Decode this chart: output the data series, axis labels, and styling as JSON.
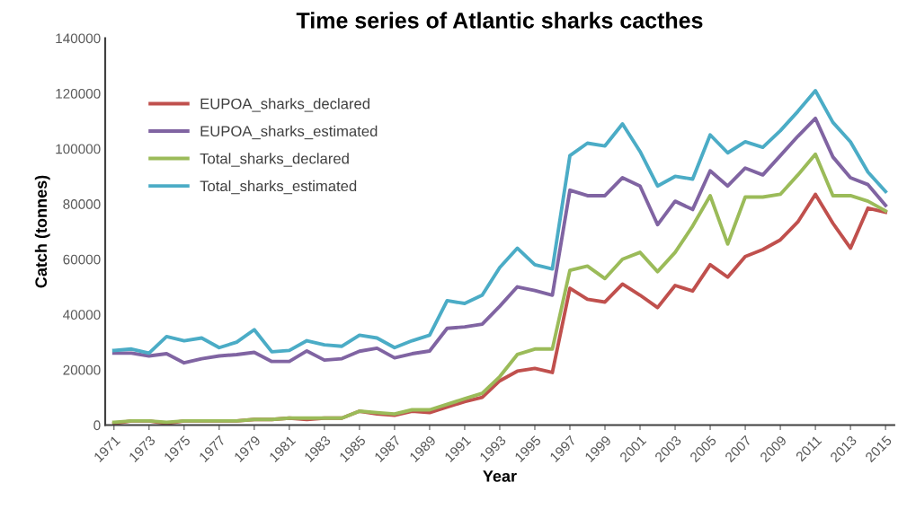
{
  "chart_data": {
    "type": "line",
    "title": "Time series of Atlantic sharks cacthes",
    "xlabel": "Year",
    "ylabel": "Catch (tonnes)",
    "x": [
      1971,
      1972,
      1973,
      1974,
      1975,
      1976,
      1977,
      1978,
      1979,
      1980,
      1981,
      1982,
      1983,
      1984,
      1985,
      1986,
      1987,
      1988,
      1989,
      1990,
      1991,
      1992,
      1993,
      1994,
      1995,
      1996,
      1997,
      1998,
      1999,
      2000,
      2001,
      2002,
      2003,
      2004,
      2005,
      2006,
      2007,
      2008,
      2009,
      2010,
      2011,
      2012,
      2013,
      2014,
      2015
    ],
    "series": [
      {
        "name": "EUPOA_sharks_declared",
        "color": "#c0504d",
        "values": [
          500,
          1500,
          1500,
          500,
          1500,
          1500,
          1500,
          1500,
          2000,
          2000,
          2500,
          2000,
          2500,
          2500,
          5000,
          4000,
          3500,
          5000,
          4500,
          6500,
          8500,
          10000,
          16000,
          19500,
          20500,
          19000,
          49500,
          45500,
          44500,
          51000,
          47000,
          42500,
          50500,
          48500,
          58000,
          53500,
          61000,
          63500,
          67000,
          73500,
          83500,
          73000,
          64000,
          78500,
          77000
        ]
      },
      {
        "name": "EUPOA_sharks_estimated",
        "color": "#8064a2",
        "values": [
          26000,
          26000,
          25000,
          25800,
          22500,
          24000,
          25000,
          25500,
          26300,
          23000,
          23000,
          26800,
          23500,
          24000,
          26700,
          27800,
          24300,
          25800,
          26800,
          35000,
          35500,
          36500,
          43000,
          50000,
          48700,
          47000,
          85000,
          83000,
          83000,
          89500,
          86500,
          72500,
          81000,
          78000,
          92000,
          86500,
          93000,
          90500,
          97500,
          104500,
          111000,
          97000,
          89500,
          87000,
          79500
        ]
      },
      {
        "name": "Total_sharks_declared",
        "color": "#9bbb59",
        "values": [
          1000,
          1500,
          1500,
          1000,
          1500,
          1500,
          1500,
          1500,
          2000,
          2000,
          2500,
          2500,
          2500,
          2500,
          5000,
          4500,
          4000,
          5500,
          5500,
          7500,
          9500,
          11500,
          17500,
          25500,
          27500,
          27500,
          56000,
          57500,
          53000,
          60000,
          62500,
          55500,
          62500,
          72000,
          83000,
          65500,
          82500,
          82500,
          83500,
          90500,
          98000,
          83000,
          83000,
          81000,
          77500
        ]
      },
      {
        "name": "Total_sharks_estimated",
        "color": "#4bacc6",
        "values": [
          27000,
          27500,
          26000,
          32000,
          30500,
          31500,
          28000,
          30000,
          34500,
          26500,
          27000,
          30500,
          29000,
          28500,
          32500,
          31500,
          28000,
          30500,
          32500,
          45000,
          44000,
          47000,
          57000,
          64000,
          58000,
          56500,
          97500,
          102000,
          101000,
          109000,
          99000,
          86500,
          90000,
          89000,
          105000,
          98500,
          102500,
          100500,
          106500,
          113500,
          121000,
          109500,
          102500,
          91500,
          84500
        ]
      }
    ],
    "xlim": [
      1970.5,
      2015.5
    ],
    "xticks": [
      1971,
      1973,
      1975,
      1977,
      1979,
      1981,
      1983,
      1985,
      1987,
      1989,
      1991,
      1993,
      1995,
      1997,
      1999,
      2001,
      2003,
      2005,
      2007,
      2009,
      2011,
      2013,
      2015
    ],
    "ylim": [
      0,
      140000
    ],
    "yticks": [
      0,
      20000,
      40000,
      60000,
      80000,
      100000,
      120000,
      140000
    ],
    "grid": false,
    "legend": "top left",
    "marker": "none",
    "line_style": "solid"
  }
}
